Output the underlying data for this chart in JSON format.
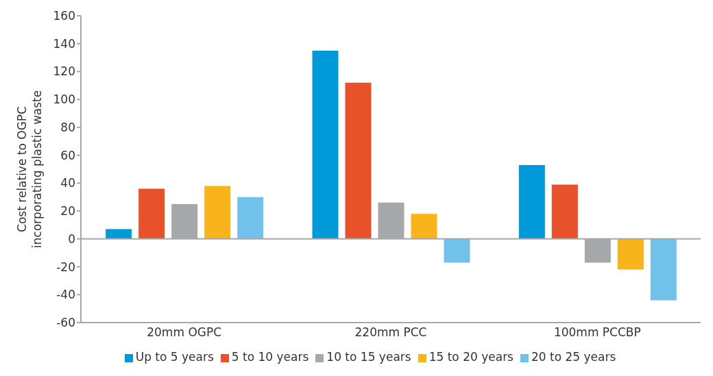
{
  "chart_data": {
    "type": "bar",
    "ylabel": "Cost relative to OGPC incorporating plastic waste",
    "categories": [
      "20mm OGPC",
      "220mm PCC",
      "100mm PCCBP"
    ],
    "series": [
      {
        "name": "Up to 5 years",
        "color": "#009ad9",
        "values": [
          7,
          135,
          53
        ]
      },
      {
        "name": "5 to 10 years",
        "color": "#e8522b",
        "values": [
          36,
          112,
          39
        ]
      },
      {
        "name": "10 to 15 years",
        "color": "#a7a8ab",
        "values": [
          25,
          26,
          -17
        ]
      },
      {
        "name": "15 to 20 years",
        "color": "#f9b31b",
        "values": [
          38,
          18,
          -22
        ]
      },
      {
        "name": "20 to 25 years",
        "color": "#71c2ea",
        "values": [
          30,
          -17,
          -44
        ]
      }
    ],
    "ylim": [
      -60,
      160
    ],
    "yticks": [
      -60,
      -40,
      -20,
      0,
      20,
      40,
      60,
      80,
      100,
      120,
      140,
      160
    ],
    "ref_lines": [
      {
        "axis": "y",
        "value": 0,
        "color": "#a7a8ab"
      }
    ],
    "grid": false,
    "legend": "bottom"
  }
}
